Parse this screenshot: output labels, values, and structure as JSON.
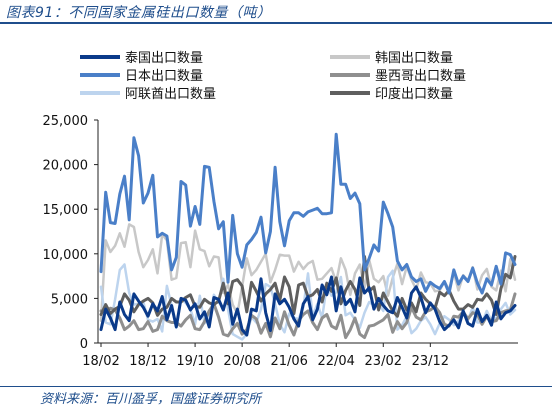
{
  "title": "图表91：不同国家金属硅出口数量（吨）",
  "source": "资料来源：百川盈孚，国盛证券研究所",
  "chart_data": {
    "type": "line",
    "yticks": [
      "25,000",
      "20,000",
      "15,000",
      "10,000",
      "5,000",
      "0"
    ],
    "xticks": [
      "18/02",
      "18/12",
      "19/10",
      "20/08",
      "21/06",
      "22/04",
      "23/02",
      "23/12"
    ],
    "ylim": [
      0,
      25000
    ],
    "grid": false,
    "legend_position": "top",
    "series": [
      {
        "name": "泰国出口数量",
        "color": "#0a3a8a",
        "width": 3.0,
        "values": [
          1500,
          3800,
          2800,
          1500,
          4600,
          3200,
          2500,
          5500,
          4700,
          4000,
          3000,
          4400,
          3600,
          5200,
          2600,
          4200,
          1800,
          5000,
          4800,
          3700,
          4400,
          2700,
          3500,
          1800,
          5100,
          4900,
          3700,
          5600,
          2100,
          3800,
          1500,
          900,
          3800,
          3600,
          7200,
          3400,
          1400,
          5500,
          4400,
          4900,
          4000,
          2700,
          1900,
          4400,
          5200,
          2600,
          3800,
          6500,
          5400,
          7400,
          3600,
          6300,
          4300,
          4900,
          3500,
          7300,
          5600,
          6200,
          3800,
          5000,
          4200,
          3600,
          3400,
          5100,
          4000,
          2800,
          5600,
          6300,
          5100,
          3400,
          4500,
          3800,
          2400,
          1500,
          2000,
          2600,
          1700,
          3600,
          2200,
          1900,
          3800,
          2400,
          3100,
          2000,
          4600,
          2700,
          3400,
          3600,
          4200
        ]
      },
      {
        "name": "韩国出口数量",
        "color": "#c8c8c8",
        "width": 2.5,
        "values": [
          2500,
          11500,
          10200,
          10900,
          12300,
          10800,
          13300,
          13000,
          10200,
          8500,
          9300,
          10500,
          7800,
          12200,
          11500,
          7100,
          7300,
          11200,
          11300,
          8500,
          12600,
          10500,
          10300,
          8600,
          9700,
          9600,
          5600,
          6500,
          4300,
          3300,
          6300,
          9500,
          7600,
          8200,
          9100,
          10000,
          6800,
          8200,
          9900,
          9800,
          9800,
          8000,
          9100,
          8300,
          8900,
          9200,
          7100,
          7200,
          7800,
          8400,
          6800,
          9500,
          8200,
          5400,
          7800,
          8800,
          6200,
          9300,
          7200,
          6800,
          7500,
          5300,
          7300,
          8900,
          6600,
          8600,
          7100,
          6000,
          7900,
          6800,
          6700,
          5800,
          5900,
          6900,
          6000,
          7900,
          5900,
          7600,
          7000,
          8500,
          6000,
          7600,
          8300,
          6300,
          5900,
          8100,
          5800,
          9400,
          7100
        ]
      },
      {
        "name": "日本出口数量",
        "color": "#4a7fc8",
        "width": 3.0,
        "values": [
          8000,
          16900,
          13500,
          13400,
          16700,
          18700,
          13800,
          23000,
          21000,
          15700,
          16800,
          18800,
          11900,
          12300,
          12000,
          8200,
          9600,
          18100,
          17700,
          13100,
          15300,
          13300,
          19800,
          19700,
          15900,
          12800,
          13600,
          6800,
          14300,
          10000,
          8500,
          11000,
          11600,
          12400,
          14100,
          10100,
          12500,
          19700,
          13600,
          10900,
          13700,
          14600,
          14600,
          14200,
          14700,
          14900,
          15100,
          14500,
          14500,
          14600,
          23400,
          17800,
          17800,
          16200,
          16800,
          15600,
          8200,
          9500,
          11000,
          10300,
          15800,
          14500,
          13000,
          9200,
          8200,
          8800,
          7400,
          6900,
          7200,
          5800,
          6800,
          6400,
          6100,
          6900,
          5600,
          8200,
          6600,
          7500,
          6900,
          8400,
          6700,
          5600,
          7200,
          6500,
          8600,
          6600,
          10100,
          9900,
          8800
        ]
      },
      {
        "name": "墨西哥出口数量",
        "color": "#8f8f8f",
        "width": 3.0,
        "values": [
          3600,
          3500,
          3900,
          3700,
          2800,
          1500,
          1900,
          2500,
          1500,
          1600,
          2400,
          1300,
          1500,
          3000,
          2500,
          2300,
          2300,
          1900,
          2600,
          3100,
          1600,
          1500,
          2400,
          3600,
          4400,
          2900,
          1000,
          800,
          1600,
          2200,
          1000,
          1500,
          3100,
          2700,
          1100,
          2200,
          700,
          2800,
          1600,
          3500,
          2000,
          900,
          2500,
          3200,
          3600,
          2300,
          1500,
          2800,
          3200,
          1900,
          1600,
          3100,
          600,
          1500,
          2800,
          1000,
          600,
          1900,
          2000,
          2300,
          2600,
          3200,
          1200,
          2400,
          1600,
          2300,
          4000,
          2900,
          2600,
          3500,
          3700,
          4100,
          3400,
          2100,
          1900,
          3000,
          2900,
          3500,
          2700,
          3400,
          3200,
          2100,
          3000,
          2400,
          2500,
          3400,
          3600,
          3700,
          5500
        ]
      },
      {
        "name": "阿联酋出口数量",
        "color": "#bdd4ee",
        "width": 2.5,
        "values": [
          6300,
          2300,
          2100,
          4900,
          8200,
          8800,
          5600,
          4300,
          4400,
          4600,
          2600,
          2400,
          2700,
          1300,
          6400,
          4200,
          1700,
          4900,
          4500,
          3800,
          2100,
          5300,
          2200,
          2700,
          5400,
          4500,
          7200,
          3800,
          1000,
          700,
          400,
          1000,
          2900,
          2300,
          3800,
          6600,
          6300,
          4400,
          2100,
          1200,
          3300,
          2800,
          2700,
          4000,
          7800,
          3000,
          4400,
          2800,
          6400,
          5300,
          5700,
          7400,
          3100,
          3400,
          2600,
          1700,
          3400,
          4600,
          4200,
          4400,
          3600,
          7400,
          8100,
          1500,
          2000,
          3000,
          1100,
          1600,
          2500,
          2900,
          2100,
          1000,
          2200,
          3000,
          2600,
          2000,
          2500,
          3200,
          2600,
          4000,
          2300,
          2300,
          3600,
          2500,
          2800,
          3800,
          4500,
          3200,
          3700
        ]
      },
      {
        "name": "印度出口数量",
        "color": "#5f5f5f",
        "width": 3.0,
        "values": [
          3200,
          4300,
          3300,
          3800,
          4100,
          5500,
          4800,
          3500,
          4300,
          4700,
          5000,
          4500,
          3100,
          3800,
          4000,
          5000,
          4600,
          4600,
          5100,
          5400,
          4100,
          4000,
          4900,
          4500,
          4300,
          4700,
          6700,
          4400,
          6900,
          7100,
          6400,
          3500,
          6800,
          5800,
          4700,
          5500,
          6000,
          6700,
          4800,
          7400,
          6300,
          3300,
          6500,
          6700,
          5200,
          5400,
          6000,
          4600,
          6700,
          5800,
          7300,
          4400,
          5900,
          6900,
          6000,
          4200,
          9700,
          5800,
          6300,
          3700,
          5600,
          4600,
          3600,
          3000,
          5000,
          3700,
          4500,
          3500,
          5600,
          4900,
          4400,
          3900,
          5700,
          5300,
          5900,
          4700,
          3800,
          3800,
          4300,
          4000,
          4900,
          4800,
          5500,
          4800,
          3200,
          6100,
          7700,
          7300,
          9700
        ]
      }
    ]
  }
}
